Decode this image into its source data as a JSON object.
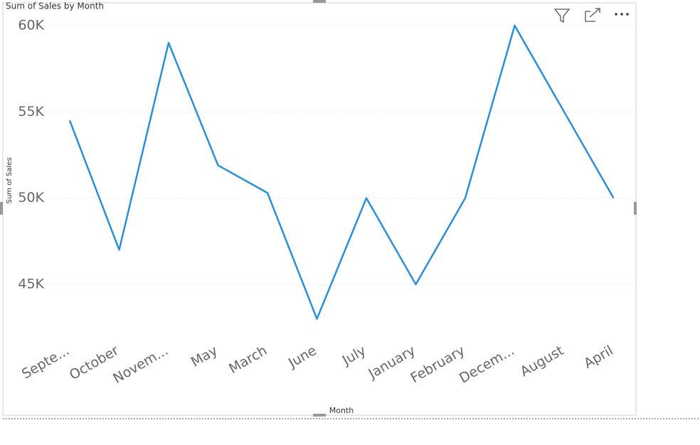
{
  "chart_data": {
    "type": "line",
    "title": "Sum of Sales by Month",
    "x_label": "Month",
    "y_label": "Sum of Sales",
    "categories": [
      "Septe...",
      "October",
      "Novem...",
      "May",
      "March",
      "June",
      "July",
      "January",
      "February",
      "Decem...",
      "August",
      "April"
    ],
    "series": [
      {
        "name": "Sum of Sales",
        "color": "#2b8fd6",
        "values": [
          54500,
          47000,
          59000,
          51900,
          50300,
          43000,
          50000,
          45000,
          50000,
          60000,
          55000,
          50000
        ]
      }
    ],
    "ylim": [
      42500,
      60600
    ],
    "yticks": [
      {
        "value": 45000,
        "label": "45K"
      },
      {
        "value": 50000,
        "label": "50K"
      },
      {
        "value": 55000,
        "label": "55K"
      },
      {
        "value": 60000,
        "label": "60K"
      }
    ],
    "grid": true
  }
}
